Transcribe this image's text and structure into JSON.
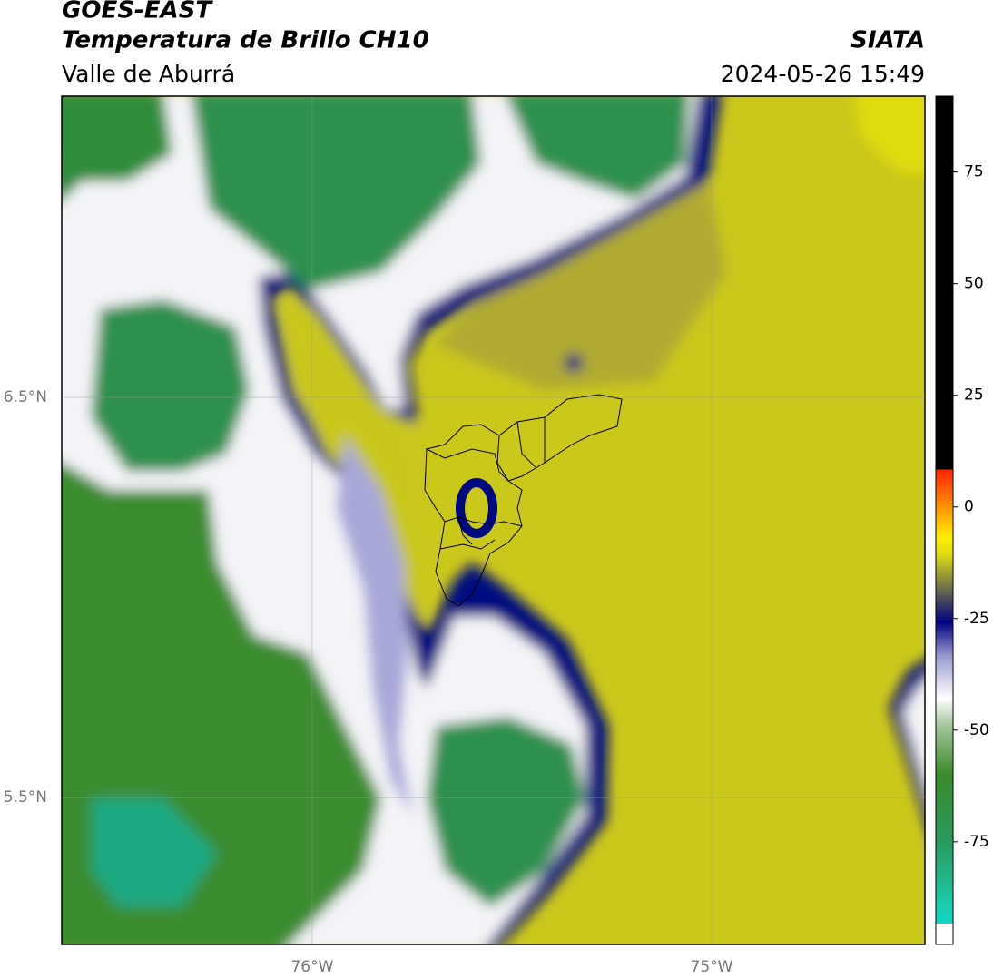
{
  "header": {
    "title": "GOES-EAST",
    "subtitle": "Temperatura de Brillo CH10",
    "region": "Valle de Aburrá",
    "source": "SIATA",
    "datetime": "2024-05-26 15:49"
  },
  "map": {
    "xlim": [
      -76.627,
      -74.466
    ],
    "ylim": [
      5.133,
      7.253
    ],
    "xticks": [
      {
        "value": -76,
        "label": "76°W"
      },
      {
        "value": -75,
        "label": "75°W"
      }
    ],
    "yticks": [
      {
        "value": 6.5,
        "label": "6.5°N"
      },
      {
        "value": 5.5,
        "label": "5.5°N"
      }
    ]
  },
  "colorbar": {
    "ylim": [
      -98,
      92
    ],
    "yticks": [
      -75,
      -50,
      -25,
      0,
      25,
      50,
      75
    ]
  }
}
